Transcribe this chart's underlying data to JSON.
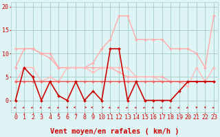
{
  "background_color": "#dff4f4",
  "grid_color": "#aacfcf",
  "xlabel": "Vent moyen/en rafales ( km/h )",
  "xlabel_color": "#cc0000",
  "xlabel_fontsize": 7.5,
  "tick_color": "#cc0000",
  "tick_fontsize": 6,
  "ylim": [
    -2.5,
    21
  ],
  "xlim": [
    -0.5,
    23.5
  ],
  "yticks": [
    0,
    5,
    10,
    15,
    20
  ],
  "xticks": [
    0,
    1,
    2,
    3,
    4,
    5,
    6,
    7,
    8,
    9,
    10,
    11,
    12,
    13,
    14,
    15,
    16,
    17,
    18,
    19,
    20,
    21,
    22,
    23
  ],
  "series": [
    {
      "x": [
        0,
        1,
        2,
        3,
        4,
        5,
        6,
        7,
        8,
        9,
        10,
        11,
        12,
        13,
        14,
        15,
        16,
        17,
        18,
        19,
        20,
        21,
        22,
        23
      ],
      "y": [
        7,
        11,
        11,
        10,
        10,
        7,
        7,
        7,
        7,
        8,
        11,
        13,
        18,
        18,
        13,
        13,
        13,
        13,
        11,
        11,
        11,
        10,
        7,
        18
      ],
      "color": "#ffaaaa",
      "lw": 1.0,
      "marker": "D",
      "ms": 2.0
    },
    {
      "x": [
        0,
        1,
        2,
        3,
        4,
        5,
        6,
        7,
        8,
        9,
        10,
        11,
        12,
        13,
        14,
        15,
        16,
        17,
        18,
        19,
        20,
        21,
        22,
        23
      ],
      "y": [
        11,
        11,
        11,
        10,
        9,
        7,
        7,
        7,
        7,
        7,
        7,
        7,
        6,
        5,
        5,
        5,
        5,
        5,
        4,
        4,
        4,
        4,
        4,
        4
      ],
      "color": "#ffaaaa",
      "lw": 1.0,
      "marker": "D",
      "ms": 2.0
    },
    {
      "x": [
        0,
        1,
        2,
        3,
        4,
        5,
        6,
        7,
        8,
        9,
        10,
        11,
        12,
        13,
        14,
        15,
        16,
        17,
        18,
        19,
        20,
        21,
        22,
        23
      ],
      "y": [
        4,
        7,
        7,
        4,
        5,
        4,
        7,
        7,
        7,
        6,
        7,
        7,
        7,
        7,
        5,
        5,
        5,
        4,
        4,
        4,
        3,
        7,
        4,
        7
      ],
      "color": "#ffbbbb",
      "lw": 1.0,
      "marker": "D",
      "ms": 2.0
    },
    {
      "x": [
        0,
        1,
        2,
        3,
        4,
        5,
        6,
        7,
        8,
        9,
        10,
        11,
        12,
        13,
        14,
        15,
        16,
        17,
        18,
        19,
        20,
        21,
        22,
        23
      ],
      "y": [
        4,
        4,
        4,
        4,
        4,
        4,
        4,
        4,
        4,
        4,
        4,
        4,
        4,
        4,
        4,
        4,
        4,
        4,
        4,
        4,
        4,
        4,
        4,
        4
      ],
      "color": "#ee6666",
      "lw": 1.2,
      "marker": "D",
      "ms": 2.0
    },
    {
      "x": [
        0,
        1,
        2,
        3,
        4,
        5,
        6,
        7,
        8,
        9,
        10,
        11,
        12,
        13,
        14,
        15,
        16,
        17,
        18,
        19,
        20,
        21,
        22,
        23
      ],
      "y": [
        0,
        7,
        5,
        0,
        4,
        1,
        0,
        4,
        0,
        2,
        0,
        11,
        11,
        0,
        4,
        0,
        0,
        0,
        0,
        2,
        4,
        4,
        4,
        4
      ],
      "color": "#cc0000",
      "lw": 1.2,
      "marker": "D",
      "ms": 2.0
    }
  ],
  "arrows": {
    "y_data": -1.5,
    "directions_deg": [
      225,
      225,
      225,
      225,
      225,
      225,
      180,
      270,
      90,
      270,
      90,
      225,
      225,
      225,
      225,
      225,
      225,
      225,
      225,
      225,
      225,
      180,
      180,
      225
    ]
  }
}
